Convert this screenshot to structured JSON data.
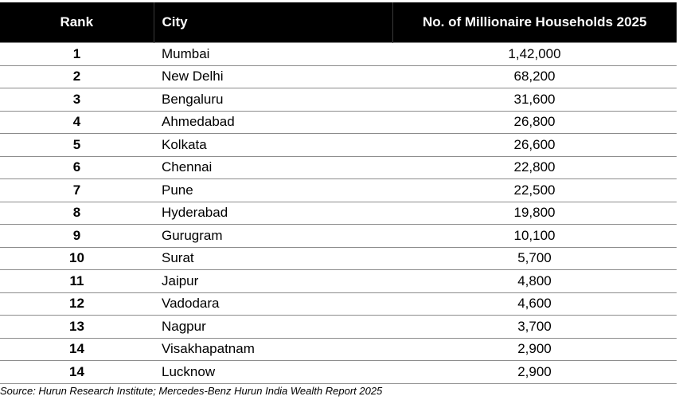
{
  "table": {
    "headers": {
      "rank": "Rank",
      "city": "City",
      "count": "No. of Millionaire Households 2025"
    },
    "rows": [
      {
        "rank": "1",
        "city": "Mumbai",
        "count": "1,42,000"
      },
      {
        "rank": "2",
        "city": "New Delhi",
        "count": "68,200"
      },
      {
        "rank": "3",
        "city": "Bengaluru",
        "count": "31,600"
      },
      {
        "rank": "4",
        "city": "Ahmedabad",
        "count": "26,800"
      },
      {
        "rank": "5",
        "city": "Kolkata",
        "count": "26,600"
      },
      {
        "rank": "6",
        "city": "Chennai",
        "count": "22,800"
      },
      {
        "rank": "7",
        "city": "Pune",
        "count": "22,500"
      },
      {
        "rank": "8",
        "city": "Hyderabad",
        "count": "19,800"
      },
      {
        "rank": "9",
        "city": "Gurugram",
        "count": "10,100"
      },
      {
        "rank": "10",
        "city": "Surat",
        "count": "5,700"
      },
      {
        "rank": "11",
        "city": "Jaipur",
        "count": "4,800"
      },
      {
        "rank": "12",
        "city": "Vadodara",
        "count": "4,600"
      },
      {
        "rank": "13",
        "city": "Nagpur",
        "count": "3,700"
      },
      {
        "rank": "14",
        "city": "Visakhapatnam",
        "count": "2,900"
      },
      {
        "rank": "14",
        "city": "Lucknow",
        "count": "2,900"
      }
    ]
  },
  "source": "Source: Hurun Research Institute; Mercedes-Benz Hurun India Wealth Report 2025"
}
